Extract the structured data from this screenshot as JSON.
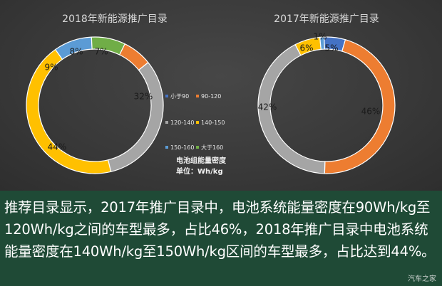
{
  "chart_data": [
    {
      "type": "pie",
      "donut": true,
      "title": "2018年新能源推广目录",
      "categories": [
        "小于90",
        "90-120",
        "120-140",
        "140-150",
        "150-160",
        "大于160"
      ],
      "values": [
        0,
        7,
        32,
        44,
        9,
        8
      ],
      "labels": [
        "",
        "7%",
        "32%",
        "44%",
        "9%",
        "8%"
      ]
    },
    {
      "type": "pie",
      "donut": true,
      "title": "2017年新能源推广目录",
      "categories": [
        "小于90",
        "90-120",
        "120-140",
        "140-150",
        "150-160",
        "大于160"
      ],
      "values": [
        5,
        46,
        42,
        6,
        1,
        0
      ],
      "labels": [
        "5%",
        "46%",
        "42%",
        "6%",
        "1%",
        ""
      ]
    }
  ],
  "legend": {
    "items": [
      "小于90",
      "90-120",
      "120-140",
      "140-150",
      "150-160",
      "大于160"
    ],
    "caption_line1": "电池组能量密度",
    "caption_line2": "单位：Wh/kg"
  },
  "colors": [
    "#4472c4",
    "#ed7d31",
    "#a5a5a5",
    "#ffc000",
    "#5b9bd5",
    "#70ad47"
  ],
  "caption": "推荐目录显示，2017年推广目录中，电池系统能量密度在90Wh/kg至120Wh/kg之间的车型最多，占比46%，2018年推广目录中电池系统能量密度在140Wh/kg至150Wh/kg区间的车型最多，占比达到44%。",
  "watermark": "汽车之家"
}
